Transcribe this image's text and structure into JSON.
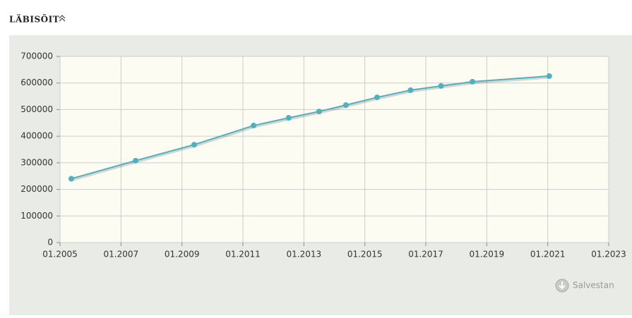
{
  "header": {
    "title": "LÄBISÕIT"
  },
  "chart_data": {
    "type": "line",
    "x": [
      2005.37,
      2007.48,
      2009.4,
      2011.35,
      2012.5,
      2013.5,
      2014.38,
      2015.4,
      2016.5,
      2017.5,
      2018.53,
      2021.05
    ],
    "series": [
      {
        "color": "#4fb0c0",
        "values": [
          240000,
          308000,
          368000,
          440000,
          469000,
          493000,
          517000,
          546000,
          573000,
          589000,
          605000,
          626000
        ]
      }
    ],
    "xlim": [
      2005,
      2023
    ],
    "xticks": [
      {
        "value": 2005,
        "label": "01.2005"
      },
      {
        "value": 2007,
        "label": "01.2007"
      },
      {
        "value": 2009,
        "label": "01.2009"
      },
      {
        "value": 2011,
        "label": "01.2011"
      },
      {
        "value": 2013,
        "label": "01.2013"
      },
      {
        "value": 2015,
        "label": "01.2015"
      },
      {
        "value": 2017,
        "label": "01.2017"
      },
      {
        "value": 2019,
        "label": "01.2019"
      },
      {
        "value": 2021,
        "label": "01.2021"
      },
      {
        "value": 2023,
        "label": "01.2023"
      }
    ],
    "ylim": [
      0,
      700000
    ],
    "yticks": [
      0,
      100000,
      200000,
      300000,
      400000,
      500000,
      600000,
      700000
    ],
    "grid": true
  },
  "actions": {
    "save": "Salvestan"
  }
}
